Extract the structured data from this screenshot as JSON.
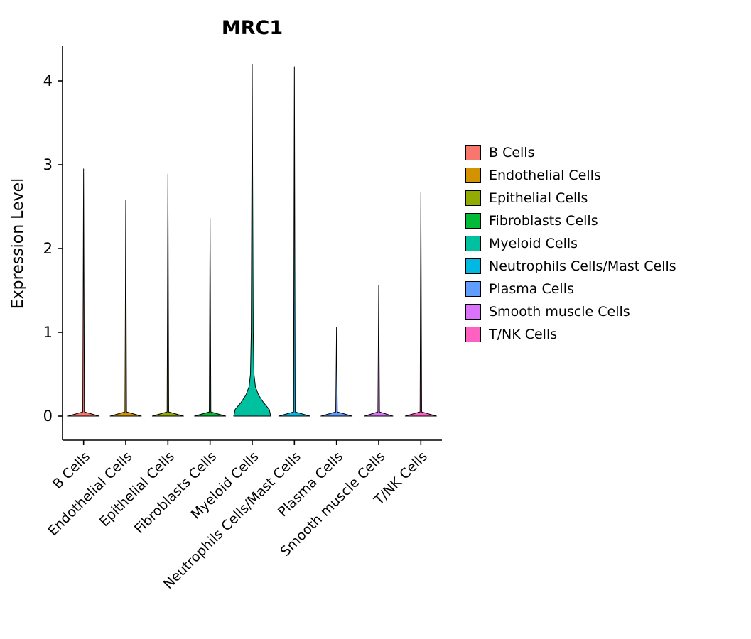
{
  "chart_data": {
    "type": "violin",
    "title": "MRC1",
    "xlabel": "",
    "ylabel": "Expression Level",
    "ylim": [
      0,
      4.4
    ],
    "yticks": [
      0,
      1,
      2,
      3,
      4
    ],
    "grid": false,
    "legend": {
      "position": "right",
      "entries": [
        "B Cells",
        "Endothelial Cells",
        "Epithelial Cells",
        "Fibroblasts Cells",
        "Myeloid Cells",
        "Neutrophils Cells/Mast Cells",
        "Plasma Cells",
        "Smooth muscle Cells",
        "T/NK Cells"
      ]
    },
    "categories": [
      "B Cells",
      "Endothelial Cells",
      "Epithelial Cells",
      "Fibroblasts Cells",
      "Myeloid Cells",
      "Neutrophils Cells/Mast Cells",
      "Plasma Cells",
      "Smooth muscle Cells",
      "T/NK Cells"
    ],
    "colors": [
      "#F8766D",
      "#D39200",
      "#93AA00",
      "#00BA38",
      "#00C19F",
      "#00B9E3",
      "#619CFF",
      "#DB72FB",
      "#FF61C3"
    ],
    "axis_color": "#000000",
    "series": [
      {
        "name": "B Cells",
        "max_expression": 2.95,
        "profile": [
          [
            0,
            22
          ],
          [
            0.05,
            1.1
          ],
          [
            2.95,
            0
          ]
        ]
      },
      {
        "name": "Endothelial Cells",
        "max_expression": 2.58,
        "profile": [
          [
            0,
            22
          ],
          [
            0.05,
            1.1
          ],
          [
            2.58,
            0
          ]
        ]
      },
      {
        "name": "Epithelial Cells",
        "max_expression": 2.89,
        "profile": [
          [
            0,
            22
          ],
          [
            0.05,
            1.1
          ],
          [
            2.89,
            0
          ]
        ]
      },
      {
        "name": "Fibroblasts Cells",
        "max_expression": 2.36,
        "profile": [
          [
            0,
            22
          ],
          [
            0.05,
            1.1
          ],
          [
            2.36,
            0
          ]
        ]
      },
      {
        "name": "Myeloid Cells",
        "max_expression": 4.2,
        "profile": [
          [
            0,
            26
          ],
          [
            0.08,
            24
          ],
          [
            0.16,
            16
          ],
          [
            0.25,
            9
          ],
          [
            0.35,
            4.5
          ],
          [
            0.5,
            2.5
          ],
          [
            1.0,
            1.4
          ],
          [
            4.2,
            0
          ]
        ]
      },
      {
        "name": "Neutrophils Cells/Mast Cells",
        "max_expression": 4.17,
        "profile": [
          [
            0,
            22
          ],
          [
            0.05,
            1.1
          ],
          [
            4.17,
            0
          ]
        ]
      },
      {
        "name": "Plasma Cells",
        "max_expression": 1.06,
        "profile": [
          [
            0,
            22
          ],
          [
            0.05,
            1.1
          ],
          [
            1.06,
            0
          ]
        ]
      },
      {
        "name": "Smooth muscle Cells",
        "max_expression": 1.56,
        "profile": [
          [
            0,
            20
          ],
          [
            0.05,
            1.1
          ],
          [
            1.56,
            0
          ]
        ]
      },
      {
        "name": "T/NK Cells",
        "max_expression": 2.67,
        "profile": [
          [
            0,
            22
          ],
          [
            0.05,
            1.1
          ],
          [
            2.67,
            0
          ]
        ]
      }
    ]
  }
}
